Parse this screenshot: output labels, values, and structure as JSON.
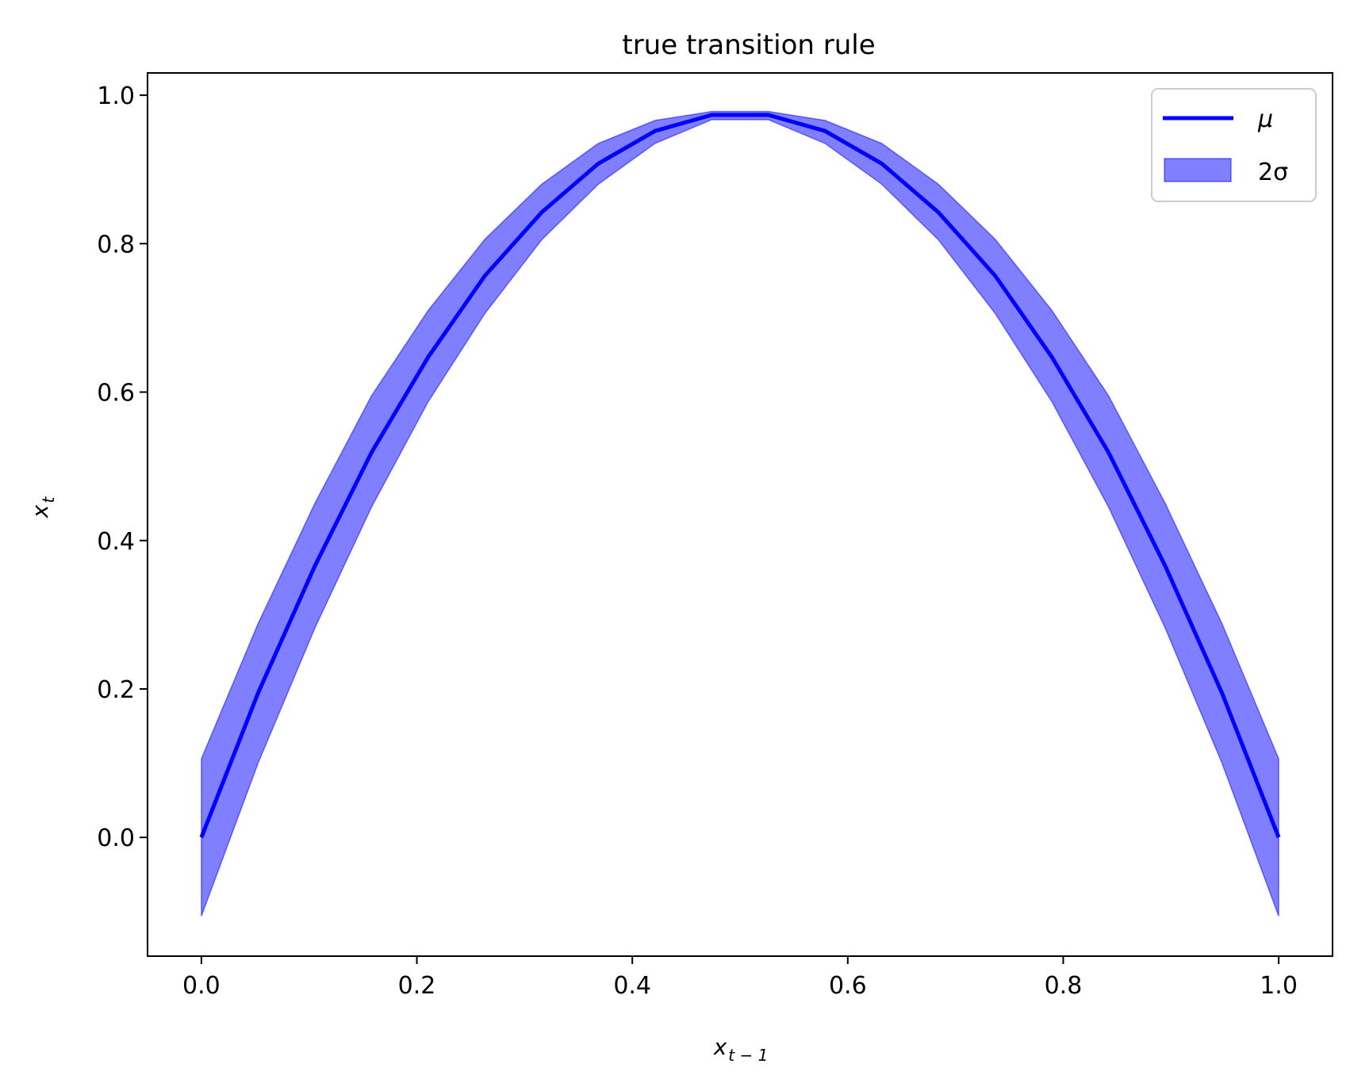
{
  "chart_data": {
    "type": "line",
    "title": "true transition rule",
    "xlabel": {
      "base": "x",
      "sub": "t − 1"
    },
    "ylabel": {
      "base": "x",
      "sub": "t"
    },
    "xlim": [
      -0.05,
      1.05
    ],
    "ylim": [
      -0.16,
      1.03
    ],
    "xticks": [
      0.0,
      0.2,
      0.4,
      0.6,
      0.8,
      1.0
    ],
    "xtick_labels": [
      "0.0",
      "0.2",
      "0.4",
      "0.6",
      "0.8",
      "1.0"
    ],
    "yticks": [
      0.0,
      0.2,
      0.4,
      0.6,
      0.8,
      1.0
    ],
    "ytick_labels": [
      "0.0",
      "0.2",
      "0.4",
      "0.6",
      "0.8",
      "1.0"
    ],
    "legend_position": "top-right",
    "series": [
      {
        "name": "μ",
        "kind": "line",
        "color": "#0000ff",
        "x": [
          0.0,
          0.0526,
          0.1053,
          0.1579,
          0.2105,
          0.2632,
          0.3158,
          0.3684,
          0.4211,
          0.4737,
          0.5263,
          0.5789,
          0.6316,
          0.6842,
          0.7368,
          0.7895,
          0.8421,
          0.8947,
          0.9474,
          1.0
        ],
        "y": [
          0.0,
          0.1945,
          0.3657,
          0.5186,
          0.6471,
          0.7568,
          0.8421,
          0.9078,
          0.9518,
          0.9734,
          0.9734,
          0.9518,
          0.9078,
          0.8421,
          0.7568,
          0.6471,
          0.5186,
          0.3657,
          0.1945,
          0.0
        ]
      },
      {
        "name": "2σ",
        "kind": "band",
        "color": "#0000ff",
        "opacity": 0.5,
        "x": [
          0.0,
          0.0526,
          0.1053,
          0.1579,
          0.2105,
          0.2632,
          0.3158,
          0.3684,
          0.4211,
          0.4737,
          0.5263,
          0.5789,
          0.6316,
          0.6842,
          0.7368,
          0.7895,
          0.8421,
          0.8947,
          0.9474,
          1.0
        ],
        "upper": [
          0.106,
          0.288,
          0.45,
          0.595,
          0.71,
          0.806,
          0.88,
          0.935,
          0.966,
          0.978,
          0.978,
          0.966,
          0.935,
          0.88,
          0.806,
          0.71,
          0.595,
          0.45,
          0.288,
          0.106
        ],
        "lower": [
          -0.106,
          0.1,
          0.282,
          0.445,
          0.587,
          0.706,
          0.805,
          0.88,
          0.935,
          0.967,
          0.967,
          0.935,
          0.88,
          0.805,
          0.706,
          0.587,
          0.445,
          0.282,
          0.1,
          -0.106
        ]
      }
    ]
  }
}
